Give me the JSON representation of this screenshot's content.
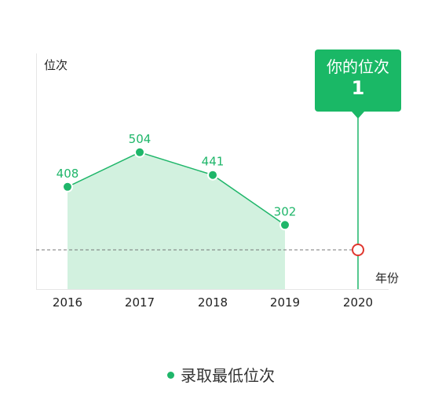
{
  "chart_data": {
    "type": "area",
    "ylabel": "位次",
    "xlabel": "年份",
    "categories": [
      "2016",
      "2017",
      "2018",
      "2019",
      "2020"
    ],
    "series": [
      {
        "name": "录取最低位次",
        "values": [
          408,
          504,
          441,
          302,
          null
        ]
      }
    ],
    "your_rank": {
      "year": "2020",
      "label": "你的位次",
      "value": 1
    },
    "colors": {
      "line": "#1fb66a",
      "area": "#d2f1df",
      "marker_edge": "#e0362e",
      "reference_line": "#777777"
    }
  },
  "legend": {
    "label": "录取最低位次"
  }
}
